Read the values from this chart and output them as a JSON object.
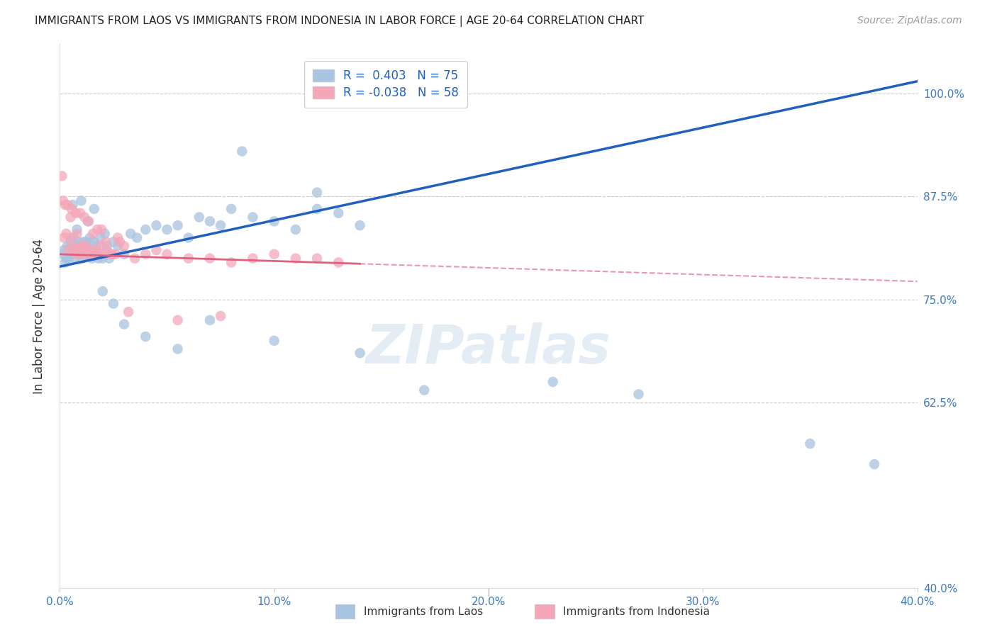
{
  "title": "IMMIGRANTS FROM LAOS VS IMMIGRANTS FROM INDONESIA IN LABOR FORCE | AGE 20-64 CORRELATION CHART",
  "source": "Source: ZipAtlas.com",
  "ylabel": "In Labor Force | Age 20-64",
  "x_tick_values": [
    0.0,
    10.0,
    20.0,
    30.0,
    40.0
  ],
  "y_tick_values": [
    40.0,
    62.5,
    75.0,
    87.5,
    100.0
  ],
  "xlim": [
    0.0,
    40.0
  ],
  "ylim": [
    40.0,
    106.0
  ],
  "laos_R": 0.403,
  "laos_N": 75,
  "indonesia_R": -0.038,
  "indonesia_N": 58,
  "laos_color": "#a8c4e0",
  "indonesia_color": "#f4a7b9",
  "laos_line_color": "#2060c0",
  "indonesia_line_color": "#e06080",
  "background_color": "#ffffff",
  "grid_color": "#cccccc",
  "legend_label_laos": "Immigrants from Laos",
  "legend_label_indonesia": "Immigrants from Indonesia",
  "watermark": "ZIPatlas",
  "laos_x": [
    0.15,
    0.2,
    0.25,
    0.3,
    0.35,
    0.4,
    0.45,
    0.5,
    0.55,
    0.6,
    0.65,
    0.7,
    0.75,
    0.8,
    0.85,
    0.9,
    0.95,
    1.0,
    1.05,
    1.1,
    1.15,
    1.2,
    1.25,
    1.3,
    1.35,
    1.4,
    1.5,
    1.6,
    1.7,
    1.8,
    1.9,
    2.0,
    2.1,
    2.2,
    2.3,
    2.5,
    2.7,
    3.0,
    3.3,
    3.6,
    4.0,
    4.5,
    5.0,
    5.5,
    6.0,
    6.5,
    7.0,
    7.5,
    8.0,
    9.0,
    10.0,
    11.0,
    12.0,
    13.0,
    14.0,
    0.6,
    0.8,
    1.0,
    1.3,
    1.6,
    2.0,
    2.5,
    3.0,
    4.0,
    5.5,
    7.0,
    10.0,
    14.0,
    17.0,
    23.0,
    27.0,
    35.0,
    38.0,
    12.0,
    8.5
  ],
  "laos_y": [
    80.5,
    81.0,
    79.5,
    80.0,
    81.5,
    80.0,
    81.0,
    82.0,
    80.5,
    81.0,
    82.5,
    80.0,
    81.5,
    80.5,
    82.0,
    81.0,
    80.5,
    81.5,
    80.0,
    82.0,
    81.5,
    80.5,
    82.0,
    81.0,
    80.5,
    82.5,
    80.0,
    82.0,
    81.5,
    80.0,
    82.5,
    80.0,
    83.0,
    81.5,
    80.0,
    82.0,
    81.5,
    80.5,
    83.0,
    82.5,
    83.5,
    84.0,
    83.5,
    84.0,
    82.5,
    85.0,
    84.5,
    84.0,
    86.0,
    85.0,
    84.5,
    83.5,
    86.0,
    85.5,
    84.0,
    86.5,
    83.5,
    87.0,
    84.5,
    86.0,
    76.0,
    74.5,
    72.0,
    70.5,
    69.0,
    72.5,
    70.0,
    68.5,
    64.0,
    65.0,
    63.5,
    57.5,
    55.0,
    88.0,
    93.0
  ],
  "indonesia_x": [
    0.1,
    0.2,
    0.3,
    0.4,
    0.5,
    0.6,
    0.7,
    0.8,
    0.9,
    1.0,
    1.1,
    1.2,
    1.3,
    1.4,
    1.5,
    1.6,
    1.7,
    1.8,
    1.9,
    2.0,
    2.2,
    2.4,
    2.6,
    2.8,
    3.0,
    3.5,
    4.0,
    4.5,
    5.0,
    6.0,
    7.0,
    8.0,
    9.0,
    10.0,
    11.0,
    12.0,
    13.0,
    0.15,
    0.35,
    0.55,
    0.75,
    0.95,
    1.15,
    1.35,
    1.55,
    1.75,
    1.95,
    2.15,
    2.4,
    2.7,
    3.2,
    0.25,
    0.5,
    0.8,
    1.05,
    1.3,
    5.5,
    7.5
  ],
  "indonesia_y": [
    90.0,
    82.5,
    83.0,
    81.0,
    82.5,
    81.5,
    81.0,
    80.5,
    81.0,
    81.5,
    80.5,
    81.5,
    81.0,
    80.5,
    81.0,
    80.5,
    81.0,
    80.5,
    81.5,
    80.5,
    81.0,
    80.5,
    80.5,
    82.0,
    81.5,
    80.0,
    80.5,
    81.0,
    80.5,
    80.0,
    80.0,
    79.5,
    80.0,
    80.5,
    80.0,
    80.0,
    79.5,
    87.0,
    86.5,
    86.0,
    85.5,
    85.5,
    85.0,
    84.5,
    83.0,
    83.5,
    83.5,
    82.0,
    80.5,
    82.5,
    73.5,
    86.5,
    85.0,
    83.0,
    81.5,
    81.0,
    72.5,
    73.0
  ],
  "laos_line_x0": 0.0,
  "laos_line_y0": 79.0,
  "laos_line_x1": 40.0,
  "laos_line_y1": 101.5,
  "indo_line_x0": 0.0,
  "indo_line_y0": 80.5,
  "indo_line_x1": 40.0,
  "indo_line_y1": 77.2,
  "indo_dash_start_x": 14.0
}
